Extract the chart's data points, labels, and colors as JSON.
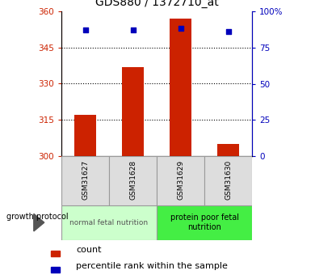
{
  "title": "GDS880 / 1372710_at",
  "samples": [
    "GSM31627",
    "GSM31628",
    "GSM31629",
    "GSM31630"
  ],
  "count_values": [
    317,
    337,
    357,
    305
  ],
  "percentile_values": [
    87,
    87,
    88,
    86
  ],
  "ylim_left": [
    300,
    360
  ],
  "ylim_right": [
    0,
    100
  ],
  "yticks_left": [
    300,
    315,
    330,
    345,
    360
  ],
  "yticks_right": [
    0,
    25,
    50,
    75,
    100
  ],
  "bar_color": "#cc2200",
  "dot_color": "#0000bb",
  "groups": [
    {
      "label": "normal fetal nutrition",
      "samples": [
        0,
        1
      ],
      "color": "#ccffcc"
    },
    {
      "label": "protein poor fetal\nnutrition",
      "samples": [
        2,
        3
      ],
      "color": "#44ee44"
    }
  ],
  "group_label": "growth protocol",
  "legend_count": "count",
  "legend_pct": "percentile rank within the sample",
  "tick_color_left": "#cc2200",
  "tick_color_right": "#0000bb",
  "bar_width": 0.45,
  "bar_bottom": 300
}
